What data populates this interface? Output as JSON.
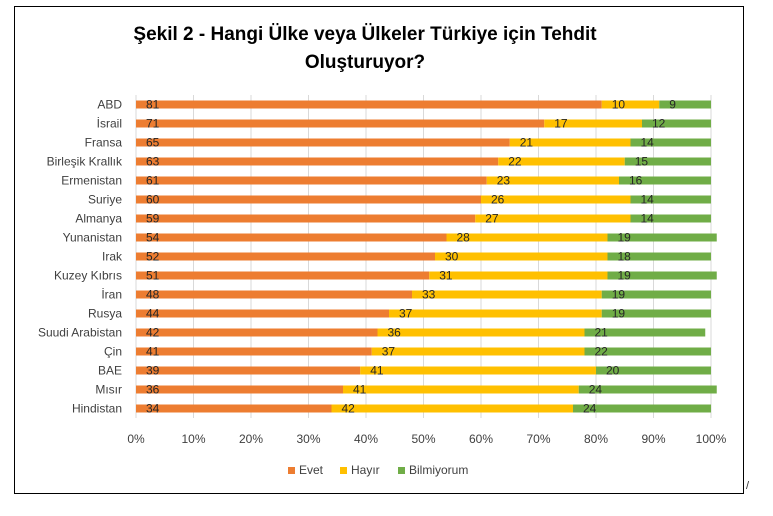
{
  "chart_data": {
    "type": "bar",
    "stacked": "percent",
    "orientation": "horizontal",
    "title_lines": [
      "Şekil 2 - Hangi Ülke veya Ülkeler Türkiye için Tehdit",
      "Oluşturuyor?"
    ],
    "categories": [
      "ABD",
      "İsrail",
      "Fransa",
      "Birleşik Krallık",
      "Ermenistan",
      "Suriye",
      "Almanya",
      "Yunanistan",
      "Irak",
      "Kuzey Kıbrıs",
      "İran",
      "Rusya",
      "Suudi Arabistan",
      "Çin",
      "BAE",
      "Mısır",
      "Hindistan"
    ],
    "series": [
      {
        "name": "Evet",
        "color": "#ED7D31",
        "values": [
          81,
          71,
          65,
          63,
          61,
          60,
          59,
          54,
          52,
          51,
          48,
          44,
          42,
          41,
          39,
          36,
          34
        ]
      },
      {
        "name": "Hayır",
        "color": "#FFC000",
        "values": [
          10,
          17,
          21,
          22,
          23,
          26,
          27,
          28,
          30,
          31,
          33,
          37,
          36,
          37,
          41,
          41,
          42
        ]
      },
      {
        "name": "Bilmiyorum",
        "color": "#70AD47",
        "values": [
          9,
          12,
          14,
          15,
          16,
          14,
          14,
          19,
          18,
          19,
          19,
          19,
          21,
          22,
          20,
          24,
          24
        ]
      }
    ],
    "x_ticks": [
      "0%",
      "10%",
      "20%",
      "30%",
      "40%",
      "50%",
      "60%",
      "70%",
      "80%",
      "90%",
      "100%"
    ],
    "xlim": [
      0,
      100
    ],
    "grid": true,
    "legend_position": "bottom"
  },
  "page_marker": "/"
}
